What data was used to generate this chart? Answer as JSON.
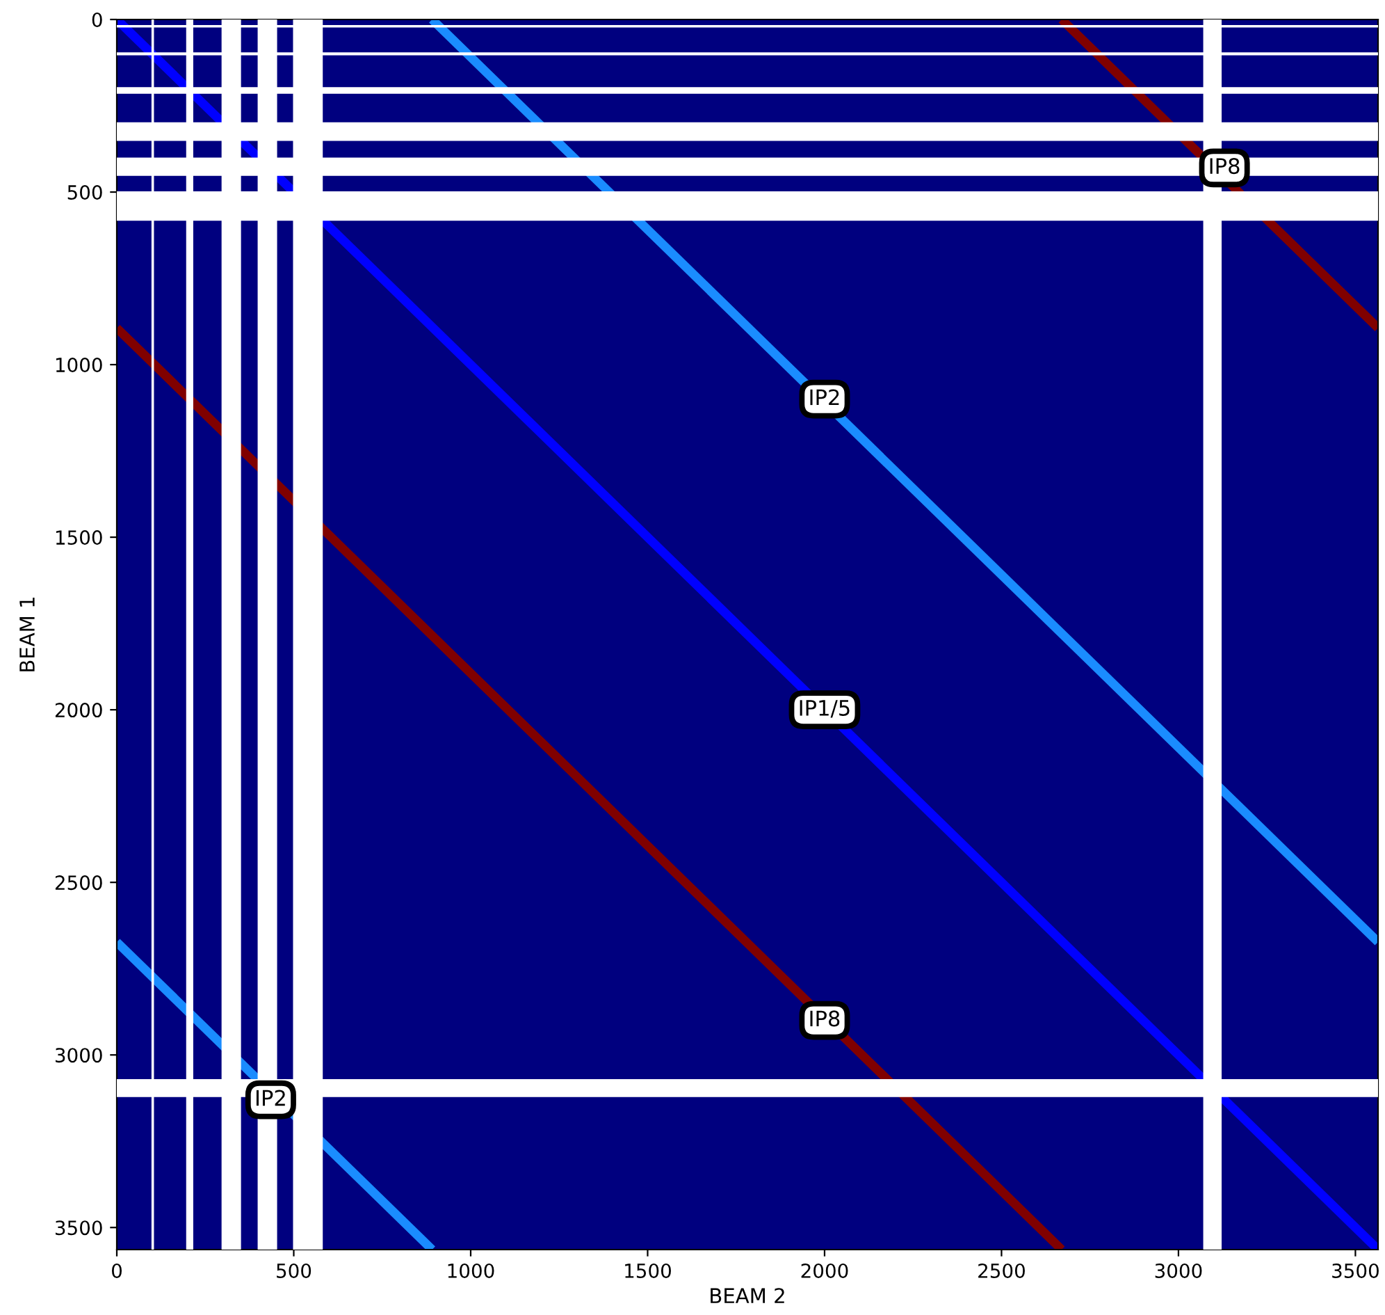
{
  "chart_data": {
    "type": "line",
    "xlabel": "BEAM 2",
    "ylabel": "BEAM 1",
    "xlim": [
      0,
      3564
    ],
    "ylim": [
      3564,
      0
    ],
    "xticks": [
      0,
      500,
      1000,
      1500,
      2000,
      2500,
      3000,
      3500
    ],
    "yticks": [
      0,
      500,
      1000,
      1500,
      2000,
      2500,
      3000,
      3500
    ],
    "series": [
      {
        "color": "#0000ff",
        "x": [
          0,
          3564
        ],
        "values": [
          0,
          3564
        ]
      },
      {
        "color": "#1a8cff",
        "x": [
          891,
          3564
        ],
        "values": [
          0,
          2673
        ]
      },
      {
        "color": "#1a8cff",
        "x": [
          0,
          891
        ],
        "values": [
          2673,
          3564
        ]
      },
      {
        "color": "#800000",
        "x": [
          2670,
          3564
        ],
        "values": [
          0,
          894
        ]
      },
      {
        "color": "#800000",
        "x": [
          0,
          2670
        ],
        "values": [
          894,
          3564
        ]
      }
    ],
    "bands": [
      {
        "axis": "y",
        "from": 16,
        "to": 23,
        "color": "#ffffff"
      },
      {
        "axis": "y",
        "from": 95,
        "to": 104,
        "color": "#ffffff"
      },
      {
        "axis": "y",
        "from": 196,
        "to": 215,
        "color": "#ffffff"
      },
      {
        "axis": "y",
        "from": 298,
        "to": 352,
        "color": "#ffffff"
      },
      {
        "axis": "y",
        "from": 400,
        "to": 453,
        "color": "#ffffff"
      },
      {
        "axis": "y",
        "from": 498,
        "to": 583,
        "color": "#ffffff"
      },
      {
        "axis": "y",
        "from": 3070,
        "to": 3122,
        "color": "#ffffff"
      },
      {
        "axis": "x",
        "from": 98,
        "to": 105,
        "color": "#ffffff"
      },
      {
        "axis": "x",
        "from": 196,
        "to": 216,
        "color": "#ffffff"
      },
      {
        "axis": "x",
        "from": 296,
        "to": 351,
        "color": "#ffffff"
      },
      {
        "axis": "x",
        "from": 398,
        "to": 453,
        "color": "#ffffff"
      },
      {
        "axis": "x",
        "from": 498,
        "to": 582,
        "color": "#ffffff"
      },
      {
        "axis": "x",
        "from": 3070,
        "to": 3122,
        "color": "#ffffff"
      }
    ],
    "annotations": [
      {
        "text": "IP8",
        "x": 3130,
        "y": 430
      },
      {
        "text": "IP2",
        "x": 2000,
        "y": 1100
      },
      {
        "text": "IP1/5",
        "x": 2000,
        "y": 2000
      },
      {
        "text": "IP8",
        "x": 2000,
        "y": 2900
      },
      {
        "text": "IP2",
        "x": 435,
        "y": 3130
      }
    ]
  }
}
